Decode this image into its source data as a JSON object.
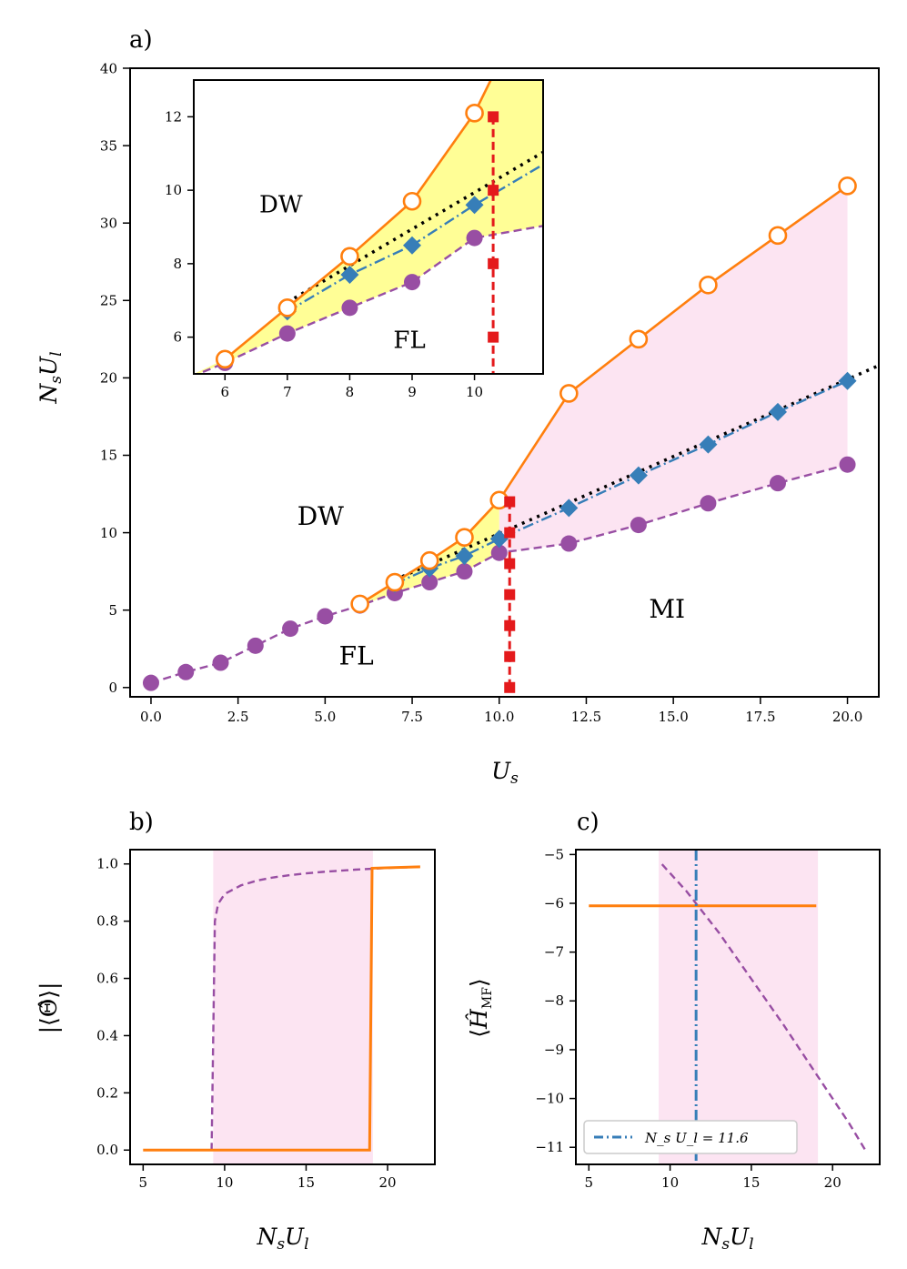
{
  "colors": {
    "orange": "#ff7f0e",
    "purple": "#984ea3",
    "blue": "#377eb8",
    "red": "#e41a1c",
    "black": "#000000",
    "pink": "#fce4f2",
    "yellow": "#fffe96"
  },
  "chart_data": [
    {
      "id": "a",
      "type": "line",
      "panel_label": "a)",
      "xlabel": "U_s",
      "ylabel": "N_s U_l",
      "xlim": [
        -0.6,
        20.9
      ],
      "ylim": [
        -0.6,
        40
      ],
      "xticks": [
        0,
        2.5,
        5,
        7.5,
        10,
        12.5,
        15,
        17.5,
        20
      ],
      "xtick_labels": [
        "0.0",
        "2.5",
        "5.0",
        "7.5",
        "10.0",
        "12.5",
        "15.0",
        "17.5",
        "20.0"
      ],
      "yticks": [
        0,
        5,
        10,
        15,
        20,
        25,
        30,
        35,
        40
      ],
      "ytick_labels": [
        "0",
        "5",
        "10",
        "15",
        "20",
        "25",
        "30",
        "35",
        "40"
      ],
      "region_labels": [
        {
          "text": "DW",
          "x": 4.2,
          "y": 10.5
        },
        {
          "text": "FL",
          "x": 5.4,
          "y": 1.5
        },
        {
          "text": "MI",
          "x": 14.3,
          "y": 4.5
        }
      ],
      "series": [
        {
          "name": "upper (orange, open circles)",
          "x": [
            6,
            7,
            8,
            9,
            10,
            12,
            14,
            16,
            18,
            20
          ],
          "y": [
            5.4,
            6.8,
            8.2,
            9.7,
            12.1,
            19.0,
            22.5,
            26.0,
            29.2,
            32.4
          ]
        },
        {
          "name": "middle (blue, diamonds)",
          "x": [
            7,
            8,
            9,
            10,
            12,
            14,
            16,
            18,
            20
          ],
          "y": [
            6.7,
            7.7,
            8.5,
            9.6,
            11.6,
            13.7,
            15.7,
            17.8,
            19.8
          ]
        },
        {
          "name": "lower (purple, filled circles)",
          "x": [
            0,
            1,
            2,
            3,
            4,
            5,
            6,
            7,
            8,
            9,
            10,
            12,
            14,
            16,
            18,
            20
          ],
          "y": [
            0.3,
            1.0,
            1.6,
            2.7,
            3.8,
            4.6,
            5.3,
            6.1,
            6.8,
            7.5,
            8.7,
            9.3,
            10.5,
            11.9,
            13.2,
            14.4
          ]
        },
        {
          "name": "linear (black, dotted)",
          "x": [
            7,
            21
          ],
          "y": [
            6.95,
            20.9
          ]
        },
        {
          "name": "critical (red, squares)",
          "x": [
            10.3,
            10.3,
            10.3,
            10.3,
            10.3,
            10.3,
            10.3
          ],
          "y": [
            0,
            2,
            4,
            6,
            8,
            10,
            12
          ]
        }
      ],
      "inset": {
        "xlim": [
          5.5,
          11.1
        ],
        "ylim": [
          5.0,
          13.0
        ],
        "xticks": [
          6,
          7,
          8,
          9,
          10
        ],
        "xtick_labels": [
          "6",
          "7",
          "8",
          "9",
          "10"
        ],
        "yticks": [
          6,
          8,
          10,
          12
        ],
        "ytick_labels": [
          "6",
          "8",
          "10",
          "12"
        ],
        "region_labels": [
          {
            "text": "DW",
            "x": 6.55,
            "y": 9.4
          },
          {
            "text": "FL",
            "x": 8.7,
            "y": 5.7
          }
        ]
      }
    },
    {
      "id": "b",
      "type": "line",
      "panel_label": "b)",
      "xlabel": "N_s U_l",
      "ylabel": "|⟨Θ̂⟩|",
      "xlim": [
        4.2,
        22.9
      ],
      "ylim": [
        -0.05,
        1.05
      ],
      "xticks": [
        5,
        10,
        15,
        20
      ],
      "xtick_labels": [
        "5",
        "10",
        "15",
        "20"
      ],
      "yticks": [
        0,
        0.2,
        0.4,
        0.6,
        0.8,
        1.0
      ],
      "ytick_labels": [
        "0.0",
        "0.2",
        "0.4",
        "0.6",
        "0.8",
        "1.0"
      ],
      "shaded_x": [
        9.3,
        19.1
      ],
      "series": [
        {
          "name": "orange solid",
          "x": [
            5,
            18.9,
            19.05,
            22
          ],
          "y": [
            0.0,
            0.0,
            0.985,
            0.99
          ]
        },
        {
          "name": "purple dashed",
          "x": [
            9.2,
            9.4,
            9.6,
            10,
            11,
            12,
            13,
            14,
            15,
            16,
            17,
            18,
            19,
            20,
            21,
            22
          ],
          "y": [
            0.0,
            0.8,
            0.86,
            0.895,
            0.925,
            0.942,
            0.953,
            0.961,
            0.967,
            0.972,
            0.976,
            0.98,
            0.983,
            0.986,
            0.988,
            0.99
          ]
        }
      ]
    },
    {
      "id": "c",
      "type": "line",
      "panel_label": "c)",
      "xlabel": "N_s U_l",
      "ylabel": "⟨Ĥ_MF⟩",
      "xlim": [
        4.2,
        22.9
      ],
      "ylim": [
        -11.35,
        -4.9
      ],
      "xticks": [
        5,
        10,
        15,
        20
      ],
      "xtick_labels": [
        "5",
        "10",
        "15",
        "20"
      ],
      "yticks": [
        -5,
        -6,
        -7,
        -8,
        -9,
        -10,
        -11
      ],
      "ytick_labels": [
        "−5",
        "−6",
        "−7",
        "−8",
        "−9",
        "−10",
        "−11"
      ],
      "shaded_x": [
        9.3,
        19.1
      ],
      "vline_x": 11.6,
      "legend": {
        "label": "N_s U_l = 11.6",
        "position": "lower-left"
      },
      "series": [
        {
          "name": "orange solid",
          "x": [
            5,
            19
          ],
          "y": [
            -6.05,
            -6.05
          ]
        },
        {
          "name": "purple dashed",
          "x": [
            9.5,
            11,
            13,
            15,
            17,
            19,
            21,
            22
          ],
          "y": [
            -5.2,
            -5.75,
            -6.6,
            -7.55,
            -8.5,
            -9.5,
            -10.5,
            -11.05
          ]
        }
      ]
    }
  ]
}
